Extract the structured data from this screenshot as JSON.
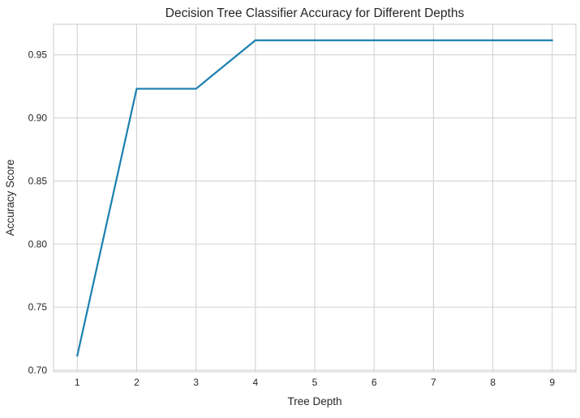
{
  "chart_data": {
    "type": "line",
    "title": "Decision Tree Classifier Accuracy for Different Depths",
    "xlabel": "Tree Depth",
    "ylabel": "Accuracy Score",
    "x": [
      1,
      2,
      3,
      4,
      5,
      6,
      7,
      8,
      9
    ],
    "series": [
      {
        "values": [
          0.7115,
          0.9231,
          0.9231,
          0.9615,
          0.9615,
          0.9615,
          0.9615,
          0.9615,
          0.9615
        ],
        "color": "#1a7faf"
      }
    ],
    "xticks": [
      "1",
      "2",
      "3",
      "4",
      "5",
      "6",
      "7",
      "8",
      "9"
    ],
    "yticks": [
      "0.70",
      "0.75",
      "0.80",
      "0.85",
      "0.90",
      "0.95"
    ],
    "xlim": [
      0.6,
      9.4
    ],
    "ylim": [
      0.6987,
      0.9742
    ],
    "grid": true,
    "legend": "none"
  }
}
